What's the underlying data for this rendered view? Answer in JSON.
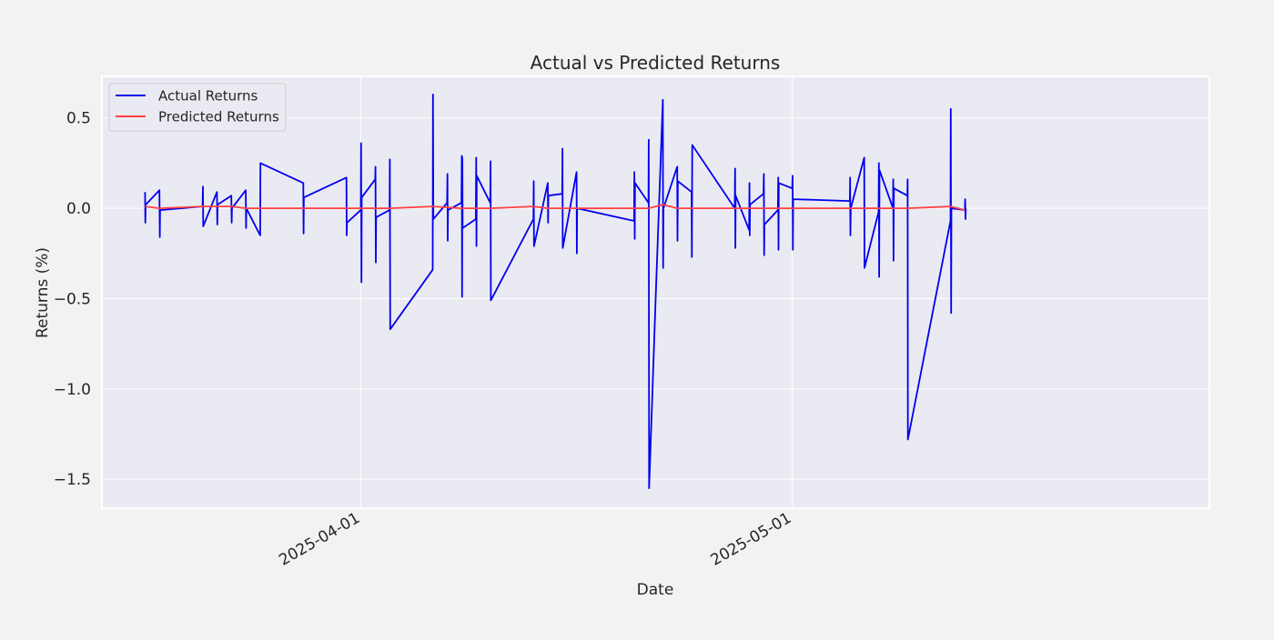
{
  "chart_data": {
    "type": "line",
    "title": "Actual vs Predicted Returns",
    "xlabel": "Date",
    "ylabel": "Returns (%)",
    "x_axis_type": "date",
    "xlim": [
      "2025-03-14",
      "2025-05-30"
    ],
    "ylim": [
      -1.66,
      0.73
    ],
    "x_ticks": [
      {
        "value": "2025-04-01",
        "label": "2025-04-01"
      },
      {
        "value": "2025-05-01",
        "label": "2025-05-01"
      }
    ],
    "y_ticks": [
      {
        "value": 0.5,
        "label": "0.5"
      },
      {
        "value": 0.0,
        "label": "0.0"
      },
      {
        "value": -0.5,
        "label": "−0.5"
      },
      {
        "value": -1.0,
        "label": "−1.0"
      },
      {
        "value": -1.5,
        "label": "−1.5"
      }
    ],
    "grid": true,
    "legend_position": "top-left",
    "series": [
      {
        "name": "Actual Returns",
        "color": "#0000ee",
        "points": [
          [
            "2025-03-17T00:00",
            0.09
          ],
          [
            "2025-03-17T00:30",
            -0.08
          ],
          [
            "2025-03-17T01:00",
            0.02
          ],
          [
            "2025-03-18T00:00",
            0.1
          ],
          [
            "2025-03-18T00:30",
            -0.16
          ],
          [
            "2025-03-18T01:00",
            -0.01
          ],
          [
            "2025-03-21T00:00",
            0.01
          ],
          [
            "2025-03-21T00:30",
            0.12
          ],
          [
            "2025-03-21T01:00",
            -0.1
          ],
          [
            "2025-03-22T00:00",
            0.09
          ],
          [
            "2025-03-22T00:30",
            -0.09
          ],
          [
            "2025-03-22T01:00",
            0.02
          ],
          [
            "2025-03-23T00:00",
            0.07
          ],
          [
            "2025-03-23T00:30",
            -0.08
          ],
          [
            "2025-03-23T01:00",
            0.0
          ],
          [
            "2025-03-24T00:00",
            0.1
          ],
          [
            "2025-03-24T00:30",
            -0.11
          ],
          [
            "2025-03-24T01:00",
            0.0
          ],
          [
            "2025-03-25T00:00",
            -0.15
          ],
          [
            "2025-03-25T00:30",
            0.25
          ],
          [
            "2025-03-28T00:00",
            0.14
          ],
          [
            "2025-03-28T00:30",
            -0.14
          ],
          [
            "2025-03-28T01:00",
            0.06
          ],
          [
            "2025-03-31T00:00",
            0.17
          ],
          [
            "2025-03-31T00:30",
            -0.15
          ],
          [
            "2025-03-31T01:00",
            -0.08
          ],
          [
            "2025-04-01T00:00",
            -0.01
          ],
          [
            "2025-04-01T00:30",
            0.36
          ],
          [
            "2025-04-01T01:00",
            -0.41
          ],
          [
            "2025-04-01T01:30",
            0.06
          ],
          [
            "2025-04-02T00:00",
            0.16
          ],
          [
            "2025-04-02T00:30",
            0.23
          ],
          [
            "2025-04-02T01:00",
            -0.3
          ],
          [
            "2025-04-02T01:30",
            -0.05
          ],
          [
            "2025-04-03T00:00",
            -0.01
          ],
          [
            "2025-04-03T00:30",
            0.27
          ],
          [
            "2025-04-03T01:00",
            -0.67
          ],
          [
            "2025-04-06T00:00",
            -0.34
          ],
          [
            "2025-04-06T00:30",
            0.63
          ],
          [
            "2025-04-06T01:00",
            -0.06
          ],
          [
            "2025-04-07T00:00",
            0.03
          ],
          [
            "2025-04-07T00:30",
            0.19
          ],
          [
            "2025-04-07T01:00",
            -0.18
          ],
          [
            "2025-04-07T01:30",
            -0.01
          ],
          [
            "2025-04-08T00:00",
            0.03
          ],
          [
            "2025-04-08T00:30",
            0.29
          ],
          [
            "2025-04-08T01:00",
            -0.49
          ],
          [
            "2025-04-08T01:30",
            0.28
          ],
          [
            "2025-04-08T02:00",
            -0.11
          ],
          [
            "2025-04-09T00:00",
            -0.06
          ],
          [
            "2025-04-09T00:30",
            0.28
          ],
          [
            "2025-04-09T01:00",
            -0.21
          ],
          [
            "2025-04-09T01:30",
            0.18
          ],
          [
            "2025-04-10T00:00",
            0.03
          ],
          [
            "2025-04-10T00:30",
            0.26
          ],
          [
            "2025-04-10T01:00",
            -0.51
          ],
          [
            "2025-04-13T00:00",
            -0.06
          ],
          [
            "2025-04-13T00:30",
            0.15
          ],
          [
            "2025-04-13T01:00",
            -0.21
          ],
          [
            "2025-04-14T00:00",
            0.14
          ],
          [
            "2025-04-14T00:30",
            -0.08
          ],
          [
            "2025-04-14T01:00",
            0.07
          ],
          [
            "2025-04-15T00:00",
            0.08
          ],
          [
            "2025-04-15T00:30",
            0.33
          ],
          [
            "2025-04-15T01:00",
            -0.22
          ],
          [
            "2025-04-16T00:00",
            0.2
          ],
          [
            "2025-04-16T00:30",
            -0.25
          ],
          [
            "2025-04-16T01:00",
            0.0
          ],
          [
            "2025-04-20T00:00",
            -0.07
          ],
          [
            "2025-04-20T00:30",
            0.2
          ],
          [
            "2025-04-20T01:00",
            -0.17
          ],
          [
            "2025-04-20T01:30",
            0.14
          ],
          [
            "2025-04-21T00:00",
            0.03
          ],
          [
            "2025-04-21T00:30",
            0.38
          ],
          [
            "2025-04-21T01:00",
            -1.55
          ],
          [
            "2025-04-21T12:00",
            -0.5
          ],
          [
            "2025-04-22T00:00",
            0.6
          ],
          [
            "2025-04-22T00:30",
            -0.33
          ],
          [
            "2025-04-22T01:00",
            0.0
          ],
          [
            "2025-04-23T00:00",
            0.23
          ],
          [
            "2025-04-23T00:30",
            -0.18
          ],
          [
            "2025-04-23T01:00",
            0.15
          ],
          [
            "2025-04-24T00:00",
            0.09
          ],
          [
            "2025-04-24T00:30",
            -0.27
          ],
          [
            "2025-04-24T01:00",
            0.35
          ],
          [
            "2025-04-27T00:00",
            0.0
          ],
          [
            "2025-04-27T00:30",
            0.22
          ],
          [
            "2025-04-27T01:00",
            -0.22
          ],
          [
            "2025-04-27T01:30",
            0.07
          ],
          [
            "2025-04-28T00:00",
            -0.12
          ],
          [
            "2025-04-28T00:30",
            0.14
          ],
          [
            "2025-04-28T01:00",
            -0.15
          ],
          [
            "2025-04-28T01:30",
            0.02
          ],
          [
            "2025-04-29T00:00",
            0.08
          ],
          [
            "2025-04-29T00:30",
            0.19
          ],
          [
            "2025-04-29T01:00",
            -0.26
          ],
          [
            "2025-04-29T01:30",
            -0.09
          ],
          [
            "2025-04-30T00:00",
            -0.01
          ],
          [
            "2025-04-30T00:30",
            0.17
          ],
          [
            "2025-04-30T01:00",
            -0.23
          ],
          [
            "2025-04-30T01:30",
            0.14
          ],
          [
            "2025-05-01T00:00",
            0.11
          ],
          [
            "2025-05-01T00:30",
            0.18
          ],
          [
            "2025-05-01T01:00",
            -0.23
          ],
          [
            "2025-05-01T01:30",
            0.05
          ],
          [
            "2025-05-05T00:00",
            0.04
          ],
          [
            "2025-05-05T00:30",
            0.17
          ],
          [
            "2025-05-05T01:00",
            -0.15
          ],
          [
            "2025-05-05T01:30",
            0.0
          ],
          [
            "2025-05-06T00:00",
            0.28
          ],
          [
            "2025-05-06T00:30",
            -0.33
          ],
          [
            "2025-05-07T00:00",
            -0.02
          ],
          [
            "2025-05-07T00:30",
            0.25
          ],
          [
            "2025-05-07T01:00",
            -0.38
          ],
          [
            "2025-05-07T01:30",
            0.21
          ],
          [
            "2025-05-08T00:00",
            0.0
          ],
          [
            "2025-05-08T00:30",
            0.16
          ],
          [
            "2025-05-08T01:00",
            -0.29
          ],
          [
            "2025-05-08T01:30",
            0.11
          ],
          [
            "2025-05-09T00:00",
            0.07
          ],
          [
            "2025-05-09T00:30",
            0.16
          ],
          [
            "2025-05-09T01:00",
            -1.28
          ],
          [
            "2025-05-12T00:00",
            -0.07
          ],
          [
            "2025-05-12T00:30",
            0.55
          ],
          [
            "2025-05-12T01:00",
            -0.58
          ],
          [
            "2025-05-12T01:30",
            0.0
          ],
          [
            "2025-05-13T00:00",
            -0.01
          ],
          [
            "2025-05-13T00:30",
            0.05
          ],
          [
            "2025-05-13T01:00",
            -0.06
          ],
          [
            "2025-05-13T01:30",
            0.0
          ]
        ]
      },
      {
        "name": "Predicted Returns",
        "color": "#ff4040",
        "points": [
          [
            "2025-03-17",
            0.01
          ],
          [
            "2025-03-18",
            0.0
          ],
          [
            "2025-03-21",
            0.01
          ],
          [
            "2025-03-22",
            0.01
          ],
          [
            "2025-03-23",
            0.01
          ],
          [
            "2025-03-24",
            0.0
          ],
          [
            "2025-03-25",
            0.0
          ],
          [
            "2025-03-28",
            0.0
          ],
          [
            "2025-03-31",
            0.0
          ],
          [
            "2025-04-01",
            0.0
          ],
          [
            "2025-04-03",
            0.0
          ],
          [
            "2025-04-06",
            0.01
          ],
          [
            "2025-04-08",
            0.0
          ],
          [
            "2025-04-10",
            0.0
          ],
          [
            "2025-04-13",
            0.01
          ],
          [
            "2025-04-14",
            0.0
          ],
          [
            "2025-04-16",
            0.0
          ],
          [
            "2025-04-20",
            0.0
          ],
          [
            "2025-04-21",
            0.0
          ],
          [
            "2025-04-22",
            0.02
          ],
          [
            "2025-04-23",
            0.0
          ],
          [
            "2025-04-24",
            0.0
          ],
          [
            "2025-04-27",
            0.0
          ],
          [
            "2025-04-30",
            0.0
          ],
          [
            "2025-05-01",
            0.0
          ],
          [
            "2025-05-06",
            0.0
          ],
          [
            "2025-05-07",
            0.0
          ],
          [
            "2025-05-09",
            0.0
          ],
          [
            "2025-05-12",
            0.01
          ],
          [
            "2025-05-13",
            -0.01
          ]
        ]
      }
    ]
  }
}
